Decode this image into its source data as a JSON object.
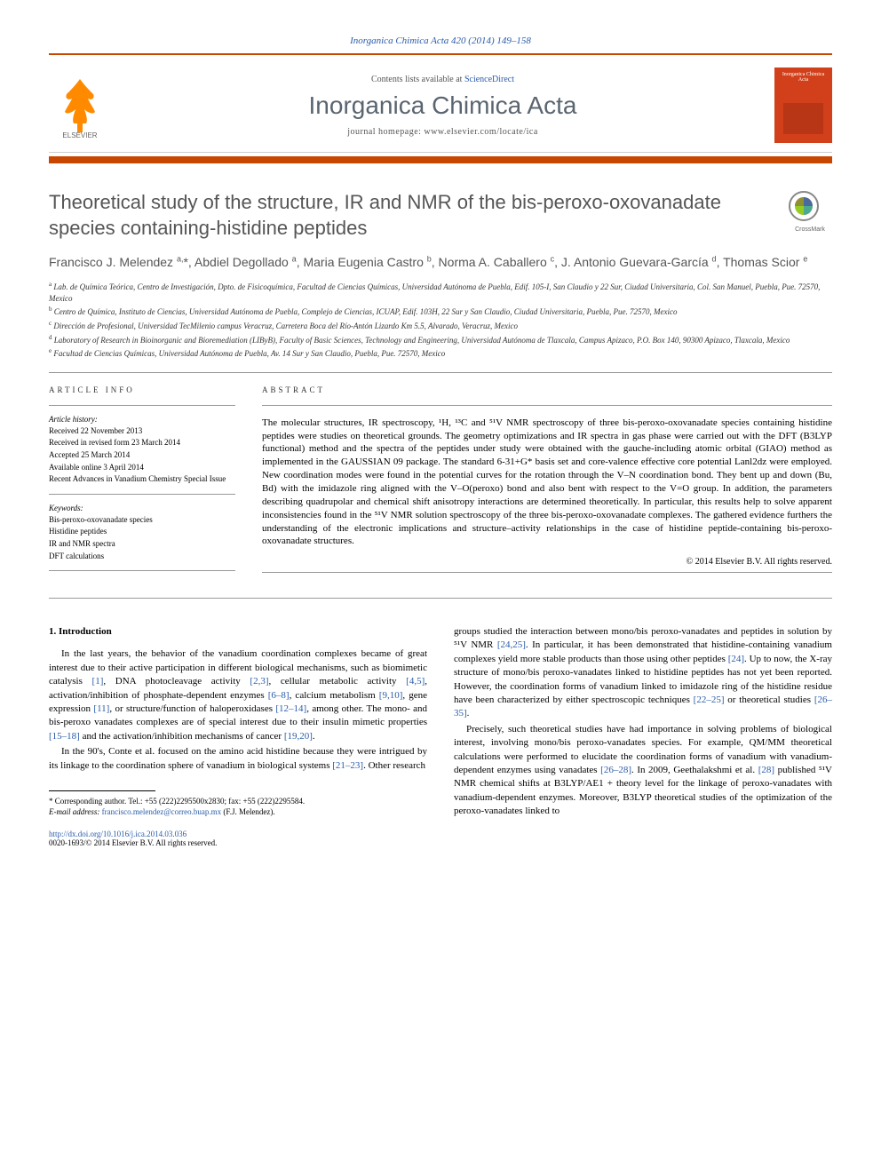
{
  "header": {
    "citation": "Inorganica Chimica Acta 420 (2014) 149–158",
    "contents_prefix": "Contents lists available at ",
    "contents_link": "ScienceDirect",
    "journal_name": "Inorganica Chimica Acta",
    "homepage_prefix": "journal homepage: ",
    "homepage_url": "www.elsevier.com/locate/ica",
    "cover_title": "Inorganica Chimica Acta"
  },
  "colors": {
    "rule_orange": "#c84700",
    "link_blue": "#2a5caa",
    "cover_red": "#d1401a",
    "text_gray": "#555"
  },
  "crossmark_label": "CrossMark",
  "title": "Theoretical study of the structure, IR and NMR of the bis-peroxo-oxovanadate species containing-histidine peptides",
  "authors_html": "Francisco J. Melendez <sup>a,</sup>*, Abdiel Degollado <sup>a</sup>, Maria Eugenia Castro <sup>b</sup>, Norma A. Caballero <sup>c</sup>, J. Antonio Guevara-García <sup>d</sup>, Thomas Scior <sup>e</sup>",
  "affiliations": [
    {
      "key": "a",
      "text": "Lab. de Química Teórica, Centro de Investigación, Dpto. de Fisicoquímica, Facultad de Ciencias Químicas, Universidad Autónoma de Puebla, Edif. 105-I, San Claudio y 22 Sur, Ciudad Universitaria, Col. San Manuel, Puebla, Pue. 72570, Mexico"
    },
    {
      "key": "b",
      "text": "Centro de Química, Instituto de Ciencias, Universidad Autónoma de Puebla, Complejo de Ciencias, ICUAP, Edif. 103H, 22 Sur y San Claudio, Ciudad Universitaria, Puebla, Pue. 72570, Mexico"
    },
    {
      "key": "c",
      "text": "Dirección de Profesional, Universidad TecMilenio campus Veracruz, Carretera Boca del Río-Antón Lizardo Km 5.5, Alvarado, Veracruz, Mexico"
    },
    {
      "key": "d",
      "text": "Laboratory of Research in Bioinorganic and Bioremediation (LIByB), Faculty of Basic Sciences, Technology and Engineering, Universidad Autónoma de Tlaxcala, Campus Apizaco, P.O. Box 140, 90300 Apizaco, Tlaxcala, Mexico"
    },
    {
      "key": "e",
      "text": "Facultad de Ciencias Químicas, Universidad Autónoma de Puebla, Av. 14 Sur y San Claudio, Puebla, Pue. 72570, Mexico"
    }
  ],
  "article_info": {
    "heading": "ARTICLE INFO",
    "history_label": "Article history:",
    "history": [
      "Received 22 November 2013",
      "Received in revised form 23 March 2014",
      "Accepted 25 March 2014",
      "Available online 3 April 2014",
      "Recent Advances in Vanadium Chemistry Special Issue"
    ],
    "keywords_label": "Keywords:",
    "keywords": [
      "Bis-peroxo-oxovanadate species",
      "Histidine peptides",
      "IR and NMR spectra",
      "DFT calculations"
    ]
  },
  "abstract": {
    "heading": "ABSTRACT",
    "text": "The molecular structures, IR spectroscopy, ¹H, ¹³C and ⁵¹V NMR spectroscopy of three bis-peroxo-oxovanadate species containing histidine peptides were studies on theoretical grounds. The geometry optimizations and IR spectra in gas phase were carried out with the DFT (B3LYP functional) method and the spectra of the peptides under study were obtained with the gauche-including atomic orbital (GIAO) method as implemented in the GAUSSIAN 09 package. The standard 6-31+G* basis set and core-valence effective core potential Lanl2dz were employed. New coordination modes were found in the potential curves for the rotation through the V–N coordination bond. They bent up and down (Bu, Bd) with the imidazole ring aligned with the V–O(peroxo) bond and also bent with respect to the V=O group. In addition, the parameters describing quadrupolar and chemical shift anisotropy interactions are determined theoretically. In particular, this results help to solve apparent inconsistencies found in the ⁵¹V NMR solution spectroscopy of the three bis-peroxo-oxovanadate complexes. The gathered evidence furthers the understanding of the electronic implications and structure–activity relationships in the case of histidine peptide-containing bis-peroxo-oxovanadate structures.",
    "copyright": "© 2014 Elsevier B.V. All rights reserved."
  },
  "body": {
    "section_heading": "1. Introduction",
    "left_html": "In the last years, the behavior of the vanadium coordination complexes became of great interest due to their active participation in different biological mechanisms, such as biomimetic catalysis <span class='ref'>[1]</span>, DNA photocleavage activity <span class='ref'>[2,3]</span>, cellular metabolic activity <span class='ref'>[4,5]</span>, activation/inhibition of phosphate-dependent enzymes <span class='ref'>[6–8]</span>, calcium metabolism <span class='ref'>[9,10]</span>, gene expression <span class='ref'>[11]</span>, or structure/function of haloperoxidases <span class='ref'>[12–14]</span>, among other. The mono- and bis-peroxo vanadates complexes are of special interest due to their insulin mimetic properties <span class='ref'>[15–18]</span> and the activation/inhibition mechanisms of cancer <span class='ref'>[19,20]</span>.",
    "left_html_2": "In the 90's, Conte et al. focused on the amino acid histidine because they were intrigued by its linkage to the coordination sphere of vanadium in biological systems <span class='ref'>[21–23]</span>. Other research",
    "right_html": "groups studied the interaction between mono/bis peroxo-vanadates and peptides in solution by ⁵¹V NMR <span class='ref'>[24,25]</span>. In particular, it has been demonstrated that histidine-containing vanadium complexes yield more stable products than those using other peptides <span class='ref'>[24]</span>. Up to now, the X-ray structure of mono/bis peroxo-vanadates linked to histidine peptides has not yet been reported. However, the coordination forms of vanadium linked to imidazole ring of the histidine residue have been characterized by either spectroscopic techniques <span class='ref'>[22–25]</span> or theoretical studies <span class='ref'>[26–35]</span>.",
    "right_html_2": "Precisely, such theoretical studies have had importance in solving problems of biological interest, involving mono/bis peroxo-vanadates species. For example, QM/MM theoretical calculations were performed to elucidate the coordination forms of vanadium with vanadium-dependent enzymes using vanadates <span class='ref'>[26–28]</span>. In 2009, Geethalakshmi et al. <span class='ref'>[28]</span> published ⁵¹V NMR chemical shifts at B3LYP/AE1 + theory level for the linkage of peroxo-vanadates with vanadium-dependent enzymes. Moreover, B3LYP theoretical studies of the optimization of the peroxo-vanadates linked to"
  },
  "footnote": {
    "corresponding": "* Corresponding author. Tel.: +55 (222)2295500x2830; fax: +55 (222)2295584.",
    "email_label": "E-mail address: ",
    "email": "francisco.melendez@correo.buap.mx",
    "email_suffix": " (F.J. Melendez)."
  },
  "footer": {
    "doi": "http://dx.doi.org/10.1016/j.ica.2014.03.036",
    "issn_line": "0020-1693/© 2014 Elsevier B.V. All rights reserved."
  }
}
